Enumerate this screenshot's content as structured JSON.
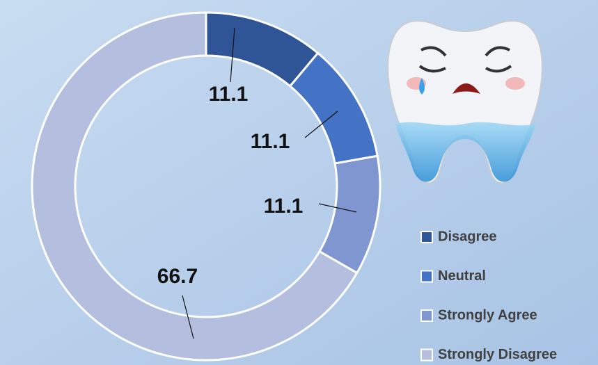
{
  "chart_data": {
    "type": "donut",
    "categories": [
      "Disagree",
      "Neutral",
      "Strongly Agree",
      "Strongly Disagree"
    ],
    "values": [
      11.1,
      11.1,
      11.1,
      66.7
    ],
    "colors": [
      "#2f5597",
      "#4472c4",
      "#7f96d1",
      "#b4bfe0"
    ],
    "legend": "right"
  }
}
